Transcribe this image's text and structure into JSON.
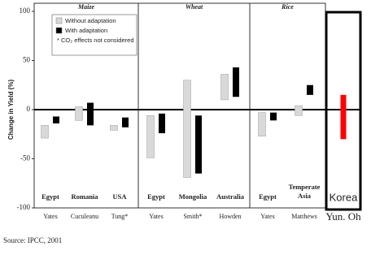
{
  "chart_data": {
    "type": "range-bar",
    "y_label": "Change in Yield (%)",
    "groups": [
      "Maize",
      "Wheat",
      "Rice"
    ],
    "categories": [
      "Egypt",
      "Romania",
      "USA",
      "Egypt",
      "Mongolia",
      "Australia",
      "Egypt",
      "Temperate Asia",
      "Korea"
    ],
    "sources": [
      "Yates",
      "Cuculeanu",
      "Tung*",
      "Yates",
      "Smith*",
      "Howden",
      "Yates",
      "Matthews",
      "Yun. Oh"
    ],
    "series": [
      {
        "name": "Without adaptation",
        "color": "#d9d9d9",
        "low": [
          -29,
          -11,
          -21,
          -49,
          -69,
          10,
          -27,
          -6,
          null
        ],
        "high": [
          -16,
          3,
          -16,
          -6,
          30,
          36,
          -3,
          4,
          null
        ]
      },
      {
        "name": "With adaptation",
        "color": "#000000",
        "low": [
          -14,
          -16,
          -18,
          -24,
          -65,
          13,
          -11,
          15,
          null
        ],
        "high": [
          -7,
          7,
          -8,
          -4,
          -6,
          43,
          -3,
          25,
          null
        ]
      },
      {
        "color": "#ff0000",
        "low": [
          null,
          null,
          null,
          null,
          null,
          null,
          null,
          null,
          -30
        ],
        "high": [
          null,
          null,
          null,
          null,
          null,
          null,
          null,
          null,
          15
        ]
      }
    ],
    "legend_note": "* CO₂ effects not considered",
    "ylim": [
      -100,
      100
    ],
    "yticks": [
      100,
      50,
      0,
      -50,
      -100
    ],
    "source": "Source: IPCC, 2001"
  }
}
